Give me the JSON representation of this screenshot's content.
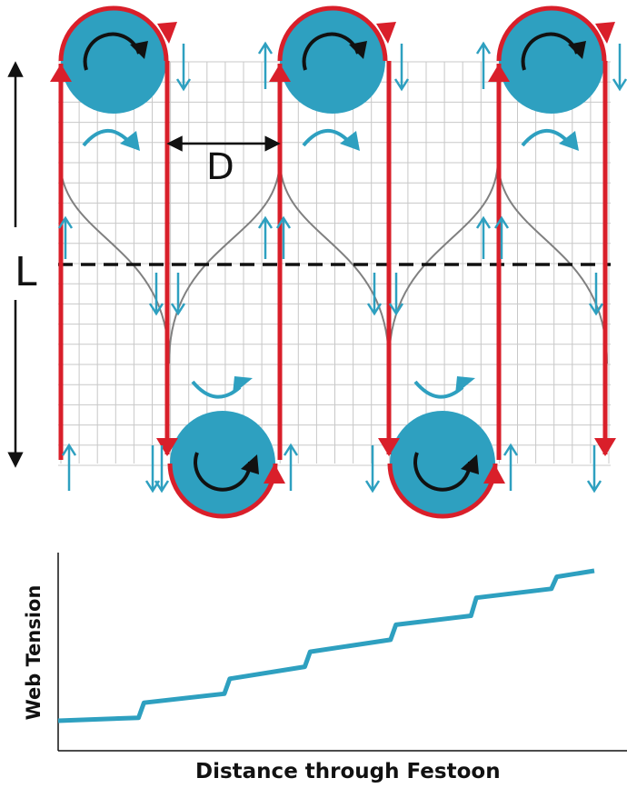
{
  "diagram": {
    "length_label": "L",
    "spacing_label": "D",
    "colors": {
      "roller": "#2ea0c0",
      "web": "#d91f2a",
      "flow_arrow": "#2ea0c0",
      "grid": "#c8c8c8",
      "deflection": "#808080",
      "dim": "#111111"
    },
    "upper_roller_count": 3,
    "lower_roller_count": 2
  },
  "chart": {
    "xlabel": "Distance through Festoon",
    "ylabel": "Web Tension"
  },
  "chart_data": {
    "type": "line",
    "title": "",
    "xlabel": "Distance through Festoon",
    "ylabel": "Web Tension",
    "description": "stepped increase in tension at each roller",
    "series": [
      {
        "x": [
          0,
          0.15,
          0.16,
          0.31,
          0.32,
          0.46,
          0.47,
          0.62,
          0.63,
          0.77,
          0.78,
          0.92,
          0.93,
          1.0
        ],
        "y": [
          0.1,
          0.11,
          0.16,
          0.19,
          0.24,
          0.28,
          0.33,
          0.37,
          0.42,
          0.45,
          0.51,
          0.54,
          0.58,
          0.6
        ]
      }
    ]
  }
}
